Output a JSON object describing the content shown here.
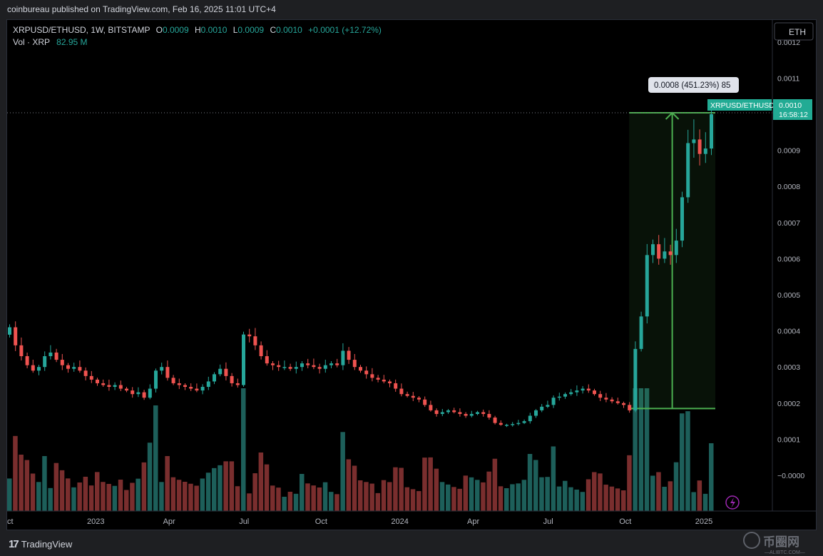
{
  "header": {
    "publisher_text": "coinbureau published on TradingView.com, Feb 16, 2025 11:01 UTC+4"
  },
  "legend": {
    "symbol": "XRPUSD/ETHUSD, 1W, BITSTAMP",
    "open_label": "O",
    "open": "0.0009",
    "high_label": "H",
    "high": "0.0010",
    "low_label": "L",
    "low": "0.0009",
    "close_label": "C",
    "close": "0.0010",
    "change": "+0.0001 (+12.72%)",
    "vol_label": "Vol · XRP",
    "vol": "82.95 M"
  },
  "currency_button": "ETH",
  "last_price_tag": {
    "symbol": "XRPUSD/ETHUSD",
    "price": "0.0010",
    "countdown": "16:58:12"
  },
  "measure": {
    "label": "0.0008 (451.23%) 85"
  },
  "footer": {
    "logo_text": "TradingView",
    "watermark_text": "币圈网",
    "watermark_sub": "—ALIBTC.COM—"
  },
  "colors": {
    "up": "#26a69a",
    "down": "#ef5350",
    "vol_up": "#1d5f5a",
    "vol_down": "#7a2e2e",
    "measure": "#4caf50",
    "tag": "#22ab94",
    "bg": "#000000"
  },
  "chart_data": {
    "type": "candlestick",
    "symbol": "XRPUSD/ETHUSD",
    "interval": "1W",
    "y_ticks": [
      "0.0012",
      "0.0011",
      "0.0010",
      "0.0009",
      "0.0008",
      "0.0007",
      "0.0006",
      "0.0005",
      "0.0004",
      "0.0003",
      "0.0002",
      "0.0001",
      "−0.0000"
    ],
    "y_tick_values": [
      0.0012,
      0.0011,
      0.001,
      0.0009,
      0.0008,
      0.0007,
      0.0006,
      0.0005,
      0.0004,
      0.0003,
      0.0002,
      0.0001,
      0.0
    ],
    "x_ticks": [
      "ct",
      "2023",
      "Apr",
      "Jul",
      "Oct",
      "2024",
      "Apr",
      "Jul",
      "Oct",
      "2025"
    ],
    "x_tick_index": [
      0,
      15,
      28,
      41,
      54,
      67,
      80,
      93,
      106,
      119
    ],
    "closes": [
      0.00041,
      0.00036,
      0.00033,
      0.000305,
      0.00029,
      0.0003,
      0.00033,
      0.00034,
      0.00032,
      0.000305,
      0.000295,
      0.0003,
      0.00029,
      0.000275,
      0.000265,
      0.000255,
      0.00025,
      0.000245,
      0.00025,
      0.00024,
      0.000235,
      0.000225,
      0.00023,
      0.000215,
      0.00024,
      0.00029,
      0.0003,
      0.00027,
      0.000255,
      0.00025,
      0.000245,
      0.00024,
      0.000235,
      0.000245,
      0.00026,
      0.00028,
      0.000295,
      0.000275,
      0.000255,
      0.00025,
      0.00039,
      0.000385,
      0.00036,
      0.00033,
      0.00031,
      0.000305,
      0.0003,
      0.0003,
      0.000295,
      0.0003,
      0.00031,
      0.000305,
      0.0003,
      0.000295,
      0.000305,
      0.00031,
      0.000305,
      0.000345,
      0.00032,
      0.0003,
      0.00029,
      0.00028,
      0.00027,
      0.000265,
      0.00026,
      0.000255,
      0.00024,
      0.000225,
      0.00022,
      0.000215,
      0.00021,
      0.000195,
      0.00018,
      0.00017,
      0.000175,
      0.00018,
      0.000175,
      0.00017,
      0.000165,
      0.00017,
      0.000175,
      0.00017,
      0.00016,
      0.000145,
      0.00014,
      0.00014,
      0.000142,
      0.000145,
      0.00015,
      0.000165,
      0.00018,
      0.00019,
      0.000195,
      0.000215,
      0.000218,
      0.000225,
      0.00023,
      0.000235,
      0.00024,
      0.000235,
      0.000225,
      0.000215,
      0.00021,
      0.000205,
      0.0002,
      0.000195,
      0.00018,
      0.00035,
      0.00044,
      0.00061,
      0.00064,
      0.0006,
      0.00062,
      0.00061,
      0.00065,
      0.00077,
      0.00092,
      0.00093,
      0.00089,
      0.000905,
      0.001
    ],
    "last_price": 0.001,
    "measure_range": {
      "from": 0.000185,
      "to": 0.001,
      "change": 0.0008,
      "percent": 451.23,
      "bars": 85
    },
    "grid": false,
    "volume_label": "Vol · XRP 82.95 M"
  }
}
